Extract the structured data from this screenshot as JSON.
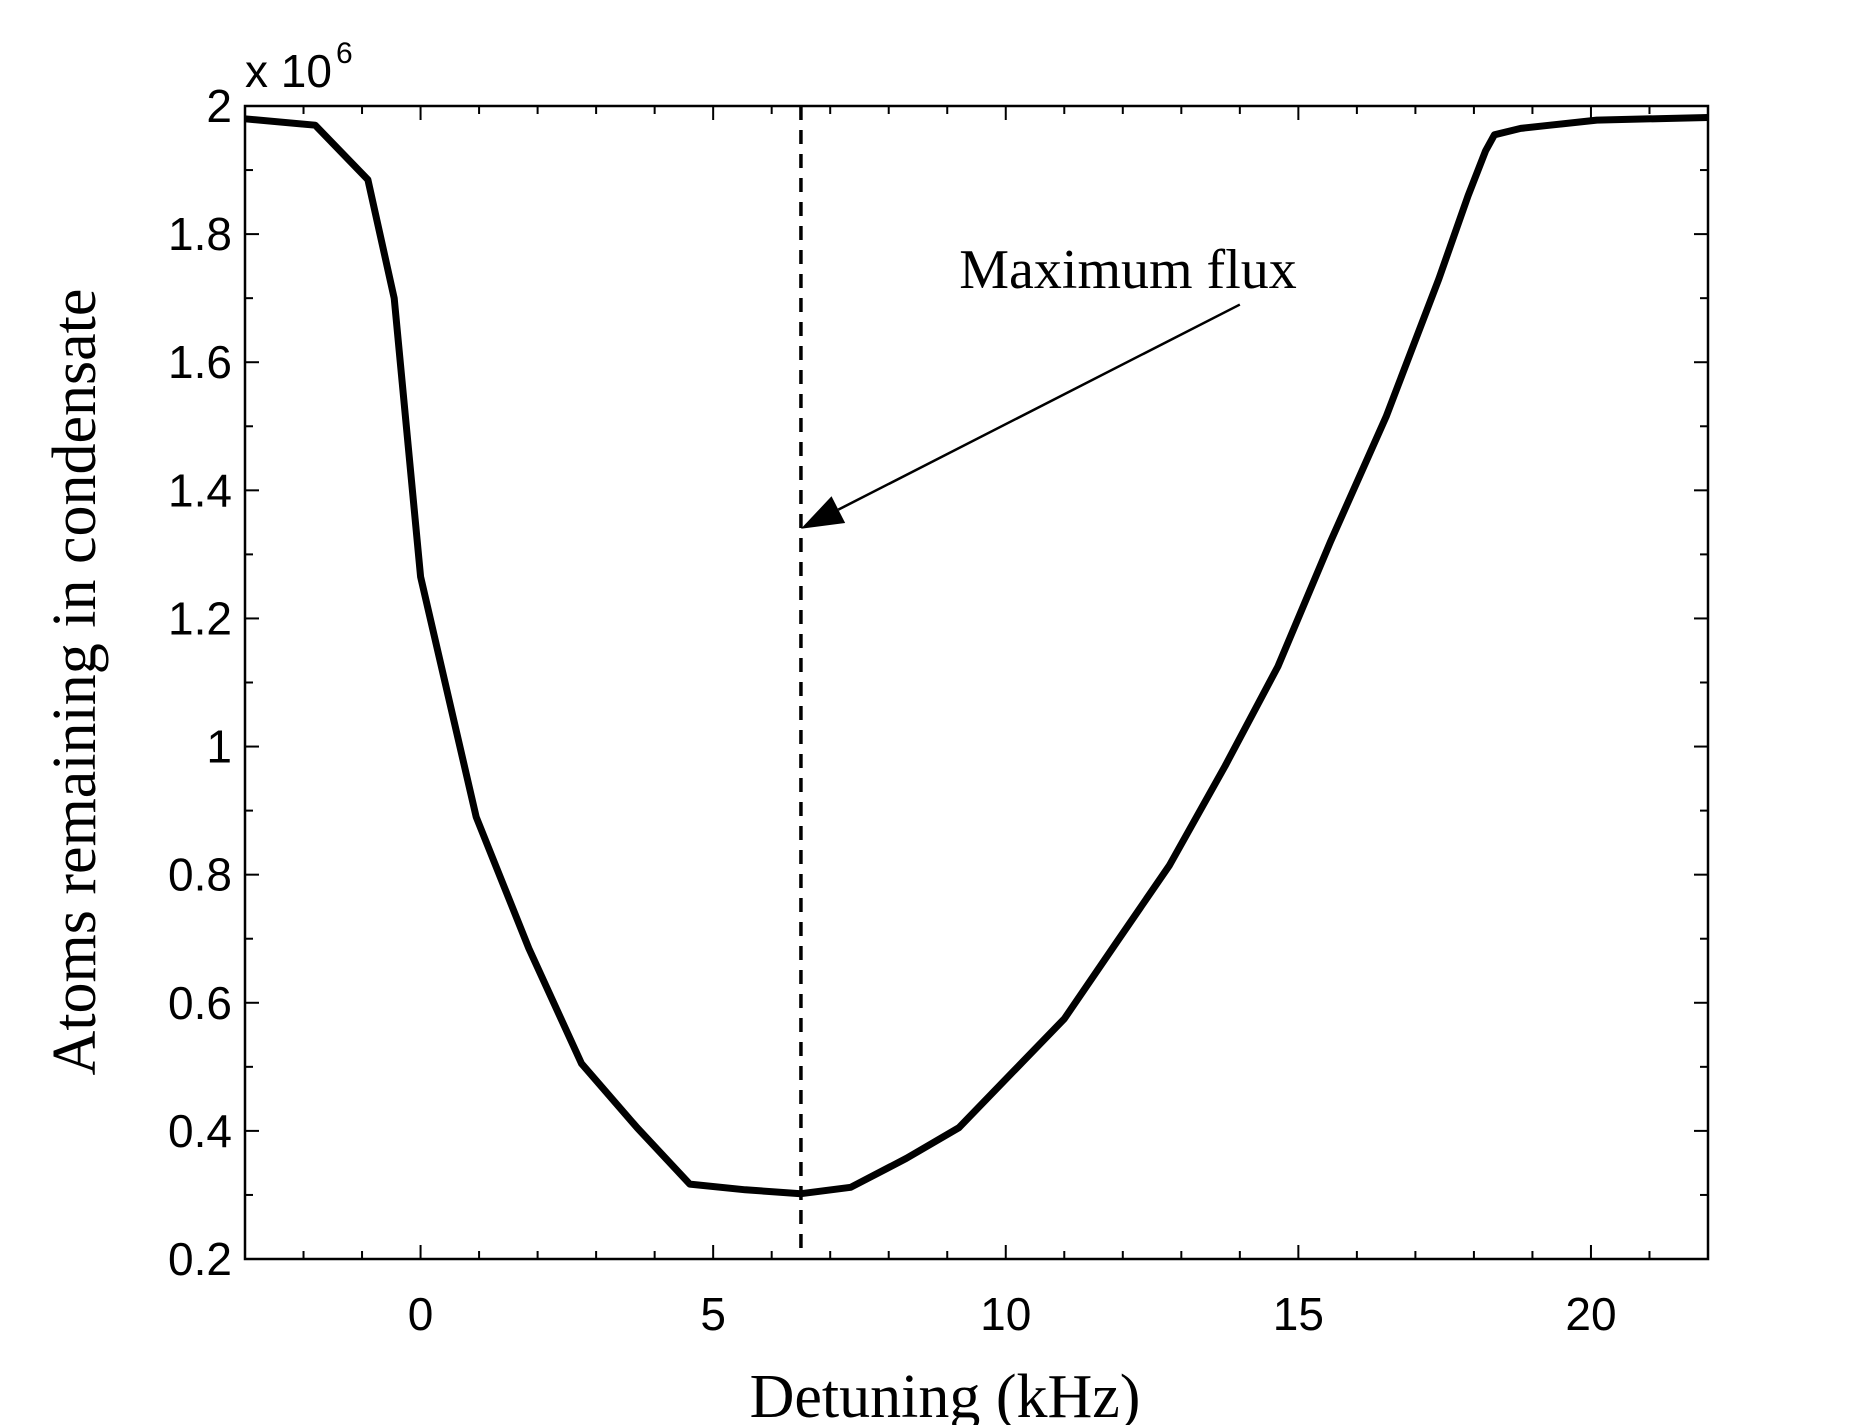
{
  "chart_data": {
    "type": "line",
    "xlabel": "Detuning (kHz)",
    "ylabel": "Atoms remaining in condensate",
    "xlim": [
      -3,
      22
    ],
    "ylim": [
      0.2,
      2.0
    ],
    "y_multiplier": {
      "base": "x 10",
      "exponent": "6"
    },
    "x_ticks": [
      0,
      5,
      10,
      15,
      20
    ],
    "x_tick_labels": [
      "0",
      "5",
      "10",
      "15",
      "20"
    ],
    "y_ticks": [
      0.2,
      0.4,
      0.6,
      0.8,
      1.0,
      1.2,
      1.4,
      1.6,
      1.8,
      2.0
    ],
    "y_tick_labels": [
      "0.2",
      "0.4",
      "0.6",
      "0.8",
      "1",
      "1.2",
      "1.4",
      "1.6",
      "1.8",
      "2"
    ],
    "grid": false,
    "series": [
      {
        "color": "#000000",
        "x": [
          -3,
          -1.8,
          -0.9,
          -0.45,
          0,
          0.95,
          1.85,
          2.75,
          3.7,
          4.6,
          5.55,
          6.5,
          7.35,
          8.3,
          9.2,
          10.1,
          11.0,
          11.9,
          12.8,
          13.75,
          14.65,
          15.55,
          16.5,
          17.4,
          17.9,
          18.2,
          18.35,
          18.8,
          19.3,
          20.1,
          22.0
        ],
        "y": [
          1.98,
          1.97,
          1.885,
          1.7,
          1.265,
          0.89,
          0.685,
          0.505,
          0.405,
          0.317,
          0.308,
          0.302,
          0.312,
          0.357,
          0.405,
          0.49,
          0.575,
          0.695,
          0.815,
          0.97,
          1.125,
          1.32,
          1.515,
          1.73,
          1.86,
          1.93,
          1.955,
          1.965,
          1.97,
          1.978,
          1.982
        ]
      }
    ],
    "reference_line": {
      "x": 6.5,
      "style": "dashed"
    },
    "annotations": [
      {
        "text": "Maximum flux",
        "arrow_from": [
          14.0,
          1.69
        ],
        "arrow_to": [
          6.5,
          1.34
        ]
      }
    ]
  }
}
